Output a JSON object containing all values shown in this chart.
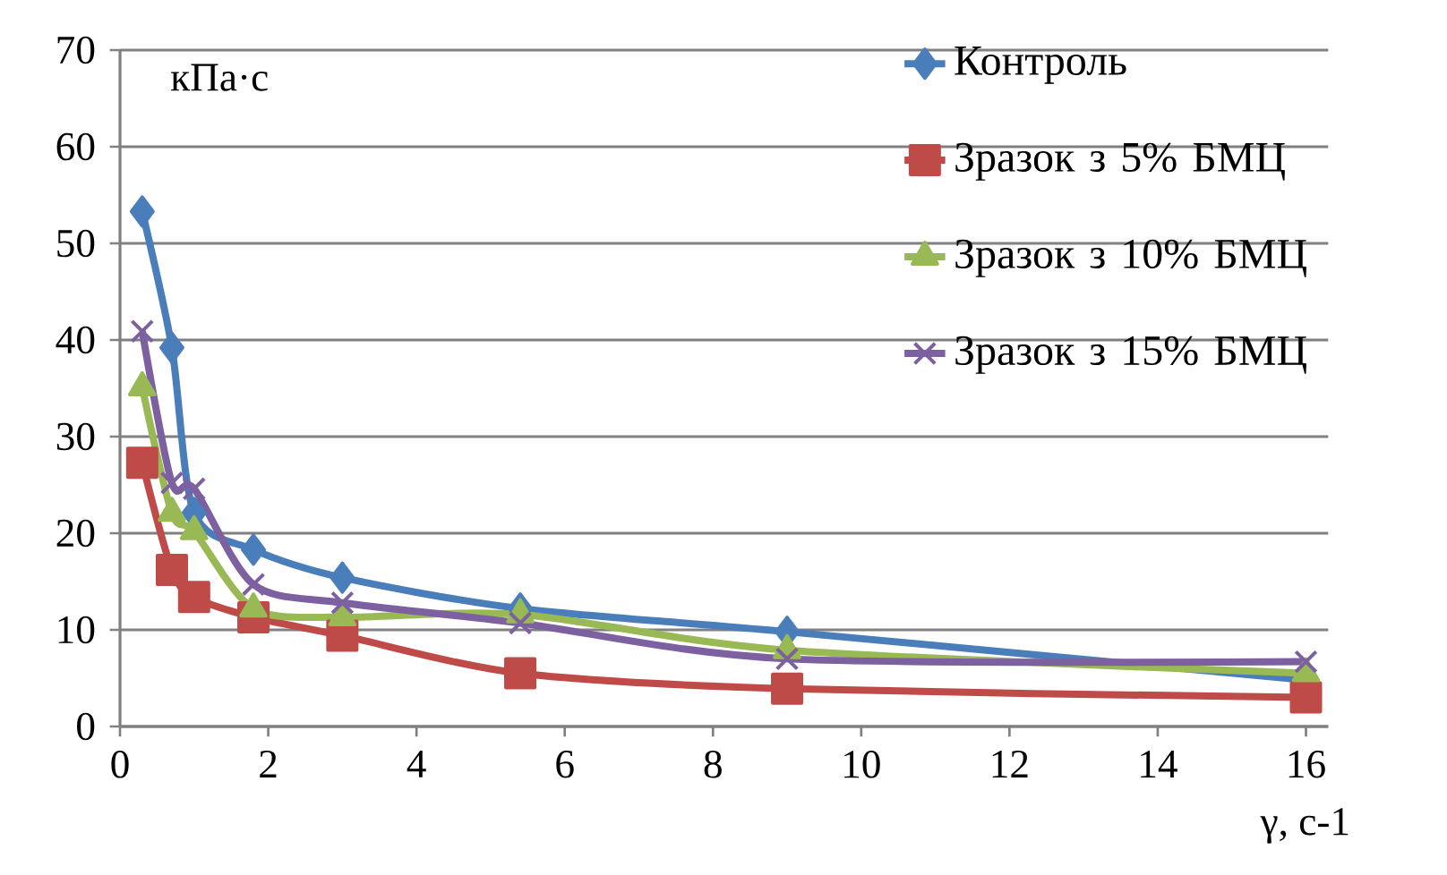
{
  "chart_data": {
    "type": "line",
    "xlabel": "γ, с-1",
    "ylabel": "кПа·с",
    "x": [
      0.3,
      0.7,
      1,
      1.8,
      3,
      5.4,
      9,
      16
    ],
    "series": [
      {
        "name": "Контроль",
        "color": "#4a7ebb",
        "marker": "diamond",
        "values": [
          53.3,
          39.2,
          22.1,
          18.3,
          15.4,
          12.2,
          9.8,
          4.8
        ]
      },
      {
        "name": "Зразок з 5% БМЦ",
        "color": "#be4b48",
        "marker": "square",
        "values": [
          27.3,
          16.2,
          13.4,
          11.3,
          9.4,
          5.5,
          3.9,
          3.0
        ]
      },
      {
        "name": "Зразок з 10% БМЦ",
        "color": "#98b954",
        "marker": "triangle",
        "values": [
          35.1,
          22.1,
          20.2,
          12.2,
          11.3,
          11.6,
          7.9,
          5.5
        ]
      },
      {
        "name": "Зразок з 15% БМЦ",
        "color": "#7d60a0",
        "marker": "cross",
        "values": [
          40.9,
          25.2,
          24.6,
          14.7,
          12.8,
          10.7,
          7.0,
          6.7
        ]
      }
    ],
    "xlim": [
      0,
      16.3
    ],
    "ylim": [
      0,
      70
    ],
    "xticks": [
      0,
      2,
      4,
      6,
      8,
      10,
      12,
      14,
      16
    ],
    "yticks": [
      0,
      10,
      20,
      30,
      40,
      50,
      60,
      70
    ],
    "grid": "y",
    "legend": "top right",
    "line_style": "solid"
  }
}
